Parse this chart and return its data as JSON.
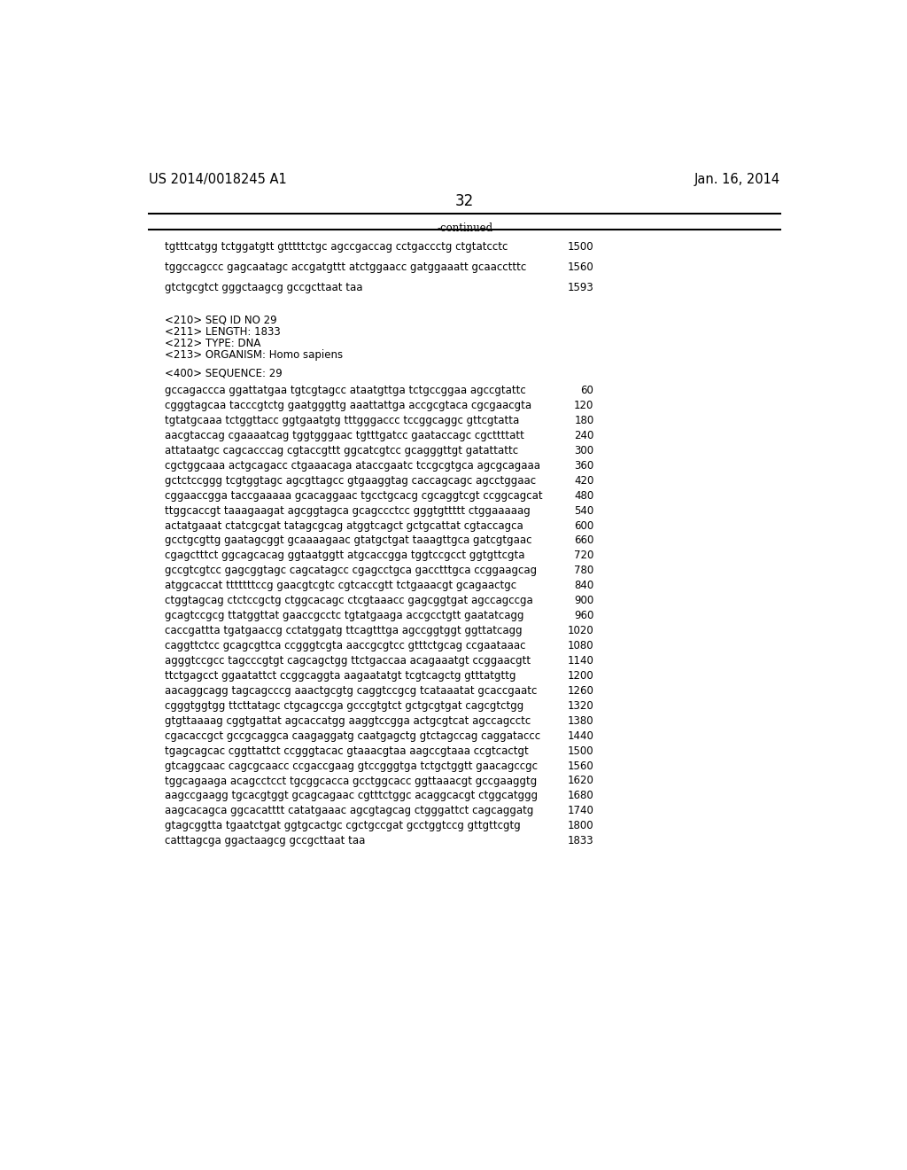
{
  "header_left": "US 2014/0018245 A1",
  "header_right": "Jan. 16, 2014",
  "page_number": "32",
  "continued_label": "-continued",
  "background_color": "#ffffff",
  "text_color": "#000000",
  "line_color": "#000000",
  "font_size_header": 10.5,
  "font_size_body": 8.5,
  "font_size_page": 12,
  "top_section": [
    {
      "seq": "tgtttcatgg tctggatgtt gtttttctgc agccgaccag cctgaccctg ctgtatcctc",
      "num": "1500"
    },
    {
      "seq": "tggccagccc gagcaatagc accgatgttt atctggaacc gatggaaatt gcaacctttc",
      "num": "1560"
    },
    {
      "seq": "gtctgcgtct gggctaagcg gccgcttaat taa",
      "num": "1593"
    }
  ],
  "meta_lines": [
    "<210> SEQ ID NO 29",
    "<211> LENGTH: 1833",
    "<212> TYPE: DNA",
    "<213> ORGANISM: Homo sapiens"
  ],
  "seq_header": "<400> SEQUENCE: 29",
  "sequence_lines": [
    {
      "seq": "gccagaccca ggattatgaa tgtcgtagcc ataatgttga tctgccggaa agccgtattc",
      "num": "60"
    },
    {
      "seq": "cgggtagcaa tacccgtctg gaatgggttg aaattattga accgcgtaca cgcgaacgta",
      "num": "120"
    },
    {
      "seq": "tgtatgcaaa tctggttacc ggtgaatgtg tttgggaccc tccggcaggc gttcgtatta",
      "num": "180"
    },
    {
      "seq": "aacgtaccag cgaaaatcag tggtgggaac tgtttgatcc gaataccagc cgcttttatt",
      "num": "240"
    },
    {
      "seq": "attataatgc cagcacccag cgtaccgttt ggcatcgtcc gcagggttgt gatattattc",
      "num": "300"
    },
    {
      "seq": "cgctggcaaa actgcagacc ctgaaacaga ataccgaatc tccgcgtgca agcgcagaaa",
      "num": "360"
    },
    {
      "seq": "gctctccggg tcgtggtagc agcgttagcc gtgaaggtag caccagcagc agcctggaac",
      "num": "420"
    },
    {
      "seq": "cggaaccgga taccgaaaaa gcacaggaac tgcctgcacg cgcaggtcgt ccggcagcat",
      "num": "480"
    },
    {
      "seq": "ttggcaccgt taaagaagat agcggtagca gcagccctcc gggtgttttt ctggaaaaag",
      "num": "540"
    },
    {
      "seq": "actatgaaat ctatcgcgat tatagcgcag atggtcagct gctgcattat cgtaccagca",
      "num": "600"
    },
    {
      "seq": "gcctgcgttg gaatagcggt gcaaaagaac gtatgctgat taaagttgca gatcgtgaac",
      "num": "660"
    },
    {
      "seq": "cgagctttct ggcagcacag ggtaatggtt atgcaccgga tggtccgcct ggtgttcgta",
      "num": "720"
    },
    {
      "seq": "gccgtcgtcc gagcggtagc cagcatagcc cgagcctgca gacctttgca ccggaagcag",
      "num": "780"
    },
    {
      "seq": "atggcaccat tttttttccg gaacgtcgtc cgtcaccgtt tctgaaacgt gcagaactgc",
      "num": "840"
    },
    {
      "seq": "ctggtagcag ctctccgctg ctggcacagc ctcgtaaacc gagcggtgat agccagccga",
      "num": "900"
    },
    {
      "seq": "gcagtccgcg ttatggttat gaaccgcctc tgtatgaaga accgcctgtt gaatatcagg",
      "num": "960"
    },
    {
      "seq": "caccgattta tgatgaaccg cctatggatg ttcagtttga agccggtggt ggttatcagg",
      "num": "1020"
    },
    {
      "seq": "caggttctcc gcagcgttca ccgggtcgta aaccgcgtcc gtttctgcag ccgaataaac",
      "num": "1080"
    },
    {
      "seq": "agggtccgcc tagcccgtgt cagcagctgg ttctgaccaa acagaaatgt ccggaacgtt",
      "num": "1140"
    },
    {
      "seq": "ttctgagcct ggaatattct ccggcaggta aagaatatgt tcgtcagctg gtttatgttg",
      "num": "1200"
    },
    {
      "seq": "aacaggcagg tagcagcccg aaactgcgtg caggtccgcg tcataaatat gcaccgaatc",
      "num": "1260"
    },
    {
      "seq": "cgggtggtgg ttcttatagc ctgcagccga gcccgtgtct gctgcgtgat cagcgtctgg",
      "num": "1320"
    },
    {
      "seq": "gtgttaaaag cggtgattat agcaccatgg aaggtccgga actgcgtcat agccagcctc",
      "num": "1380"
    },
    {
      "seq": "cgacaccgct gccgcaggca caagaggatg caatgagctg gtctagccag caggataccc",
      "num": "1440"
    },
    {
      "seq": "tgagcagcac cggttattct ccgggtacac gtaaacgtaa aagccgtaaa ccgtcactgt",
      "num": "1500"
    },
    {
      "seq": "gtcaggcaac cagcgcaacc ccgaccgaag gtccgggtga tctgctggtt gaacagccgc",
      "num": "1560"
    },
    {
      "seq": "tggcagaaga acagcctcct tgcggcacca gcctggcacc ggttaaacgt gccgaaggtg",
      "num": "1620"
    },
    {
      "seq": "aagccgaagg tgcacgtggt gcagcagaac cgtttctggc acaggcacgt ctggcatggg",
      "num": "1680"
    },
    {
      "seq": "aagcacagca ggcacatttt catatgaaac agcgtagcag ctgggattct cagcaggatg",
      "num": "1740"
    },
    {
      "seq": "gtagcggtta tgaatctgat ggtgcactgc cgctgccgat gcctggtccg gttgttcgtg",
      "num": "1800"
    },
    {
      "seq": "catttagcga ggactaagcg gccgcttaat taa",
      "num": "1833"
    }
  ]
}
